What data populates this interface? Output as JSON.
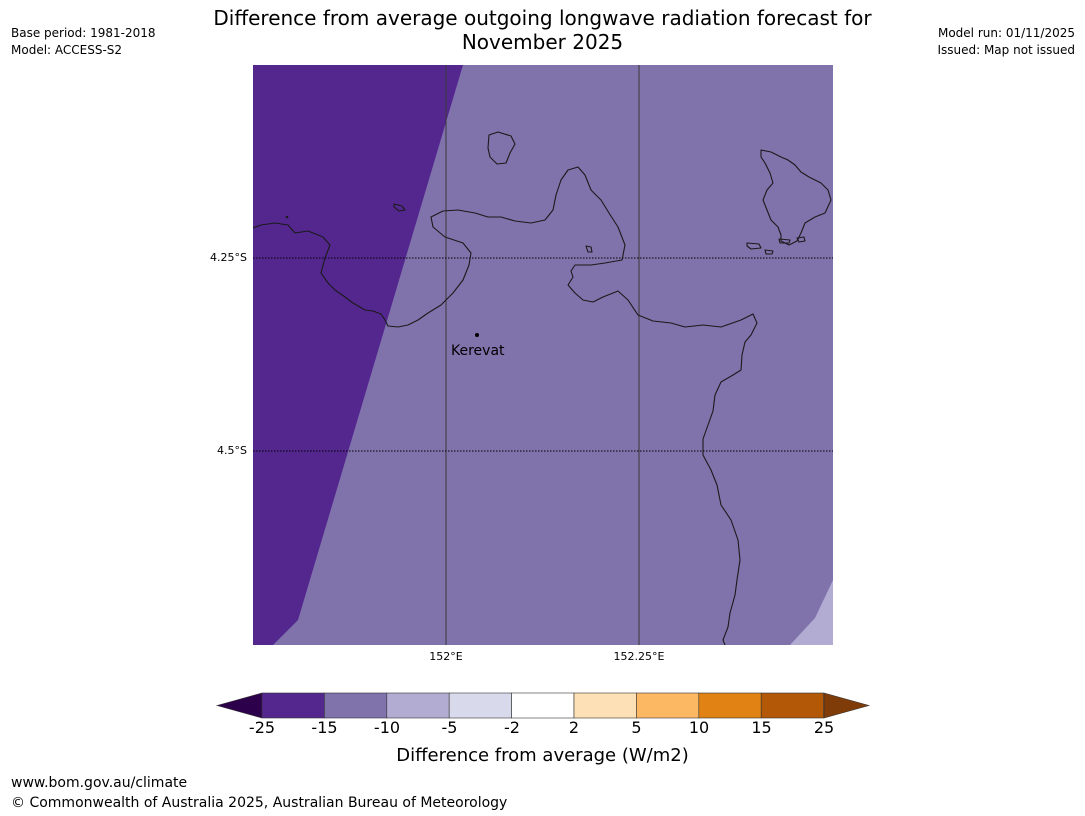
{
  "title": {
    "line1": "Difference from average outgoing longwave radiation forecast for",
    "line2": "November 2025"
  },
  "meta_left": {
    "base_period": "Base period: 1981-2018",
    "model": "Model: ACCESS-S2"
  },
  "meta_right": {
    "model_run": "Model run: 01/11/2025",
    "issued": "Issued: Map not issued"
  },
  "map": {
    "lat_labels": [
      "4.25°S",
      "4.5°S"
    ],
    "lon_labels": [
      "152°E",
      "152.25°E"
    ],
    "place": "Kerevat",
    "zones": [
      {
        "class": "-25 to -15",
        "color": "#54278f"
      },
      {
        "class": "-15 to -10",
        "color": "#8073ac"
      },
      {
        "class": "-10 to -5",
        "color": "#b2abd2"
      }
    ],
    "coast_color": "#1a1a1a"
  },
  "colorbar": {
    "ticks": [
      "-25",
      "-15",
      "-10",
      "-5",
      "-2",
      "2",
      "5",
      "10",
      "15",
      "25"
    ],
    "low_extend_color": "#2d004b",
    "high_extend_color": "#7f3b08",
    "bin_colors": [
      "#54278f",
      "#8073ac",
      "#b2abd2",
      "#d8daeb",
      "#ffffff",
      "#fee0b6",
      "#fdb863",
      "#e08214",
      "#b35806"
    ],
    "label": "Difference from average (W/m2)"
  },
  "footer": {
    "url": "www.bom.gov.au/climate",
    "copyright": "© Commonwealth of Australia 2025, Australian Bureau of Meteorology"
  }
}
